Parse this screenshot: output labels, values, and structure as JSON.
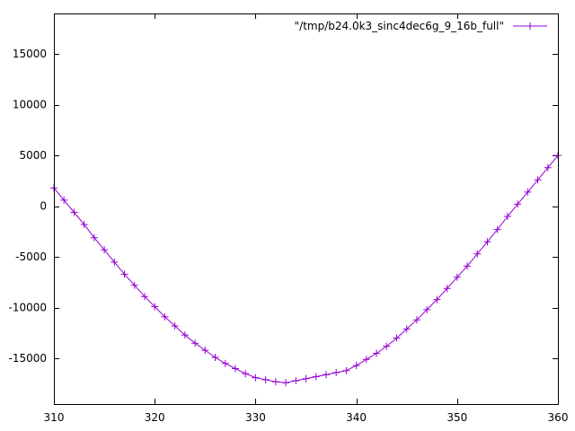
{
  "chart_data": {
    "type": "line",
    "title": "",
    "xlabel": "",
    "ylabel": "",
    "xlim": [
      310,
      360
    ],
    "ylim": [
      -19500,
      19000
    ],
    "x_ticks": [
      310,
      320,
      330,
      340,
      350,
      360
    ],
    "y_ticks": [
      -15000,
      -10000,
      -5000,
      0,
      5000,
      10000,
      15000
    ],
    "grid": false,
    "legend_position": "top-right",
    "marker": "plus",
    "series": [
      {
        "name": "\"/tmp/b24.0k3_sinc4dec6g_9_16b_full\"",
        "color": "#9400d3",
        "x": [
          310,
          311,
          312,
          313,
          314,
          315,
          316,
          317,
          318,
          319,
          320,
          321,
          322,
          323,
          324,
          325,
          326,
          327,
          328,
          329,
          330,
          331,
          332,
          333,
          334,
          335,
          336,
          337,
          338,
          339,
          340,
          341,
          342,
          343,
          344,
          345,
          346,
          347,
          348,
          349,
          350,
          351,
          352,
          353,
          354,
          355,
          356,
          357,
          358,
          359,
          360
        ],
        "y": [
          1800,
          600,
          -600,
          -1800,
          -3100,
          -4300,
          -5500,
          -6700,
          -7800,
          -8900,
          -9900,
          -10900,
          -11800,
          -12700,
          -13500,
          -14200,
          -14900,
          -15500,
          -16000,
          -16500,
          -16900,
          -17100,
          -17300,
          -17400,
          -17200,
          -17000,
          -16800,
          -16600,
          -16400,
          -16200,
          -15700,
          -15100,
          -14500,
          -13800,
          -13000,
          -12100,
          -11200,
          -10200,
          -9200,
          -8100,
          -7000,
          -5900,
          -4700,
          -3500,
          -2300,
          -1000,
          200,
          1400,
          2600,
          3800,
          5000
        ]
      }
    ]
  }
}
